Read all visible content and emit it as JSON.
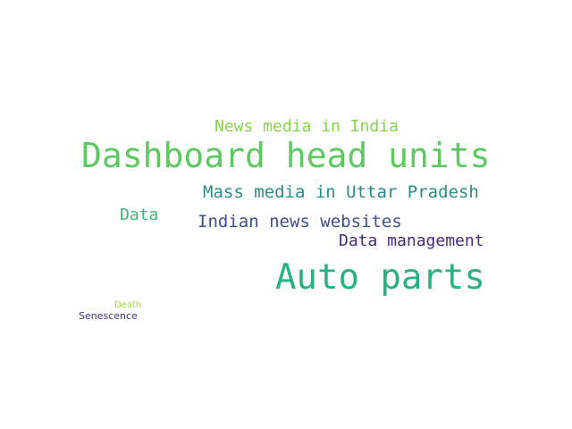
{
  "words": [
    {
      "text": "News media in India",
      "color": "#86d549"
    },
    {
      "text": "Dashboard head units",
      "color": "#5ec962"
    },
    {
      "text": "Mass media in Uttar Pradesh",
      "color": "#2a8c8a"
    },
    {
      "text": "Data",
      "color": "#3cb878"
    },
    {
      "text": "Indian news websites",
      "color": "#3e4f8a"
    },
    {
      "text": "Data management",
      "color": "#482878"
    },
    {
      "text": "Auto parts",
      "color": "#2bb07f"
    },
    {
      "text": "Death",
      "color": "#a5db36"
    },
    {
      "text": "Senescence",
      "color": "#46327e"
    }
  ]
}
